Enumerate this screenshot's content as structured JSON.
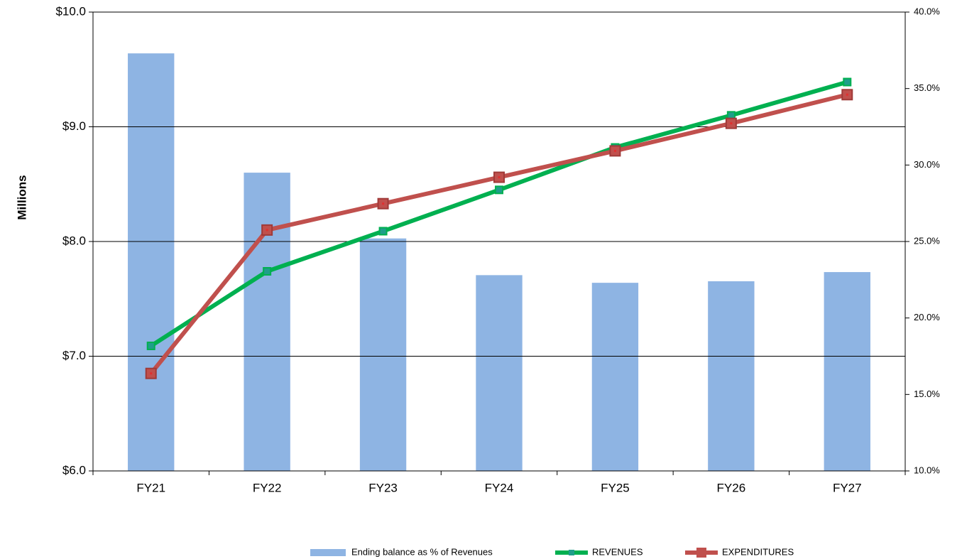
{
  "chart_data": {
    "type": "combo",
    "y_label": "Millions",
    "categories": [
      "FY21",
      "FY22",
      "FY23",
      "FY24",
      "FY25",
      "FY26",
      "FY27"
    ],
    "series": [
      {
        "name": "Ending balance as % of Revenues",
        "type": "bar",
        "axis": "y2",
        "color": "#8eb4e3",
        "values": [
          37.3,
          29.5,
          25.2,
          22.8,
          22.3,
          22.4,
          23.0
        ]
      },
      {
        "name": "REVENUES",
        "type": "line",
        "axis": "y",
        "color": "#00b050",
        "marker_color": "#1f9e8a",
        "values": [
          7.09,
          7.74,
          8.09,
          8.45,
          8.82,
          9.1,
          9.39
        ]
      },
      {
        "name": "EXPENDITURES",
        "type": "line",
        "axis": "y",
        "color": "#c0504d",
        "marker_color": "#e03030",
        "values": [
          6.85,
          8.1,
          8.33,
          8.56,
          8.79,
          9.03,
          9.28
        ]
      }
    ],
    "ylim": [
      6,
      10
    ],
    "yticks": [
      {
        "value": 6,
        "label": "$6.0"
      },
      {
        "value": 7,
        "label": "$7.0"
      },
      {
        "value": 8,
        "label": "$8.0"
      },
      {
        "value": 9,
        "label": "$9.0"
      },
      {
        "value": 10,
        "label": "$10.0"
      }
    ],
    "y2lim": [
      10,
      40
    ],
    "y2ticks": [
      {
        "value": 10,
        "label": "10.0%"
      },
      {
        "value": 15,
        "label": "15.0%"
      },
      {
        "value": 20,
        "label": "20.0%"
      },
      {
        "value": 25,
        "label": "25.0%"
      },
      {
        "value": 30,
        "label": "30.0%"
      },
      {
        "value": 35,
        "label": "35.0%"
      },
      {
        "value": 40,
        "label": "40.0%"
      }
    ],
    "grid": true,
    "legend": "bottom"
  }
}
